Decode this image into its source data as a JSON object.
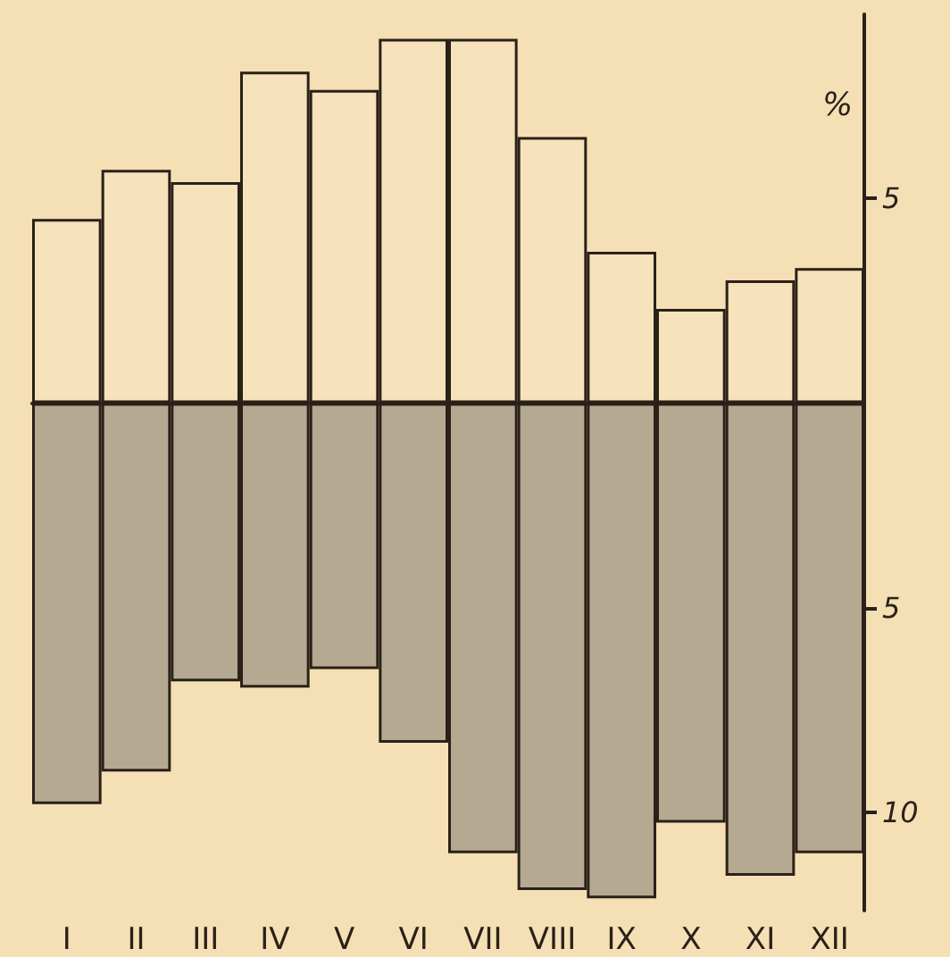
{
  "chart_data": {
    "type": "bar",
    "stacked": true,
    "ylabel": "%",
    "categories": [
      "I",
      "II",
      "III",
      "IV",
      "V",
      "VI",
      "VII",
      "VIII",
      "IX",
      "X",
      "XI",
      "XII"
    ],
    "series": [
      {
        "color": "#f6e2bb",
        "values": [
          4.5,
          5.7,
          5.4,
          8.1,
          7.65,
          8.9,
          8.9,
          6.5,
          3.7,
          2.3,
          3.0,
          3.3
        ]
      },
      {
        "color": "#b5a992",
        "values": [
          -9.8,
          -9.0,
          -6.8,
          -6.95,
          -6.5,
          -8.3,
          -11.0,
          -11.9,
          -12.1,
          -10.25,
          -11.55,
          -11.0
        ]
      }
    ],
    "ylim": [
      -12.4,
      9.5
    ],
    "yticks": [
      {
        "value": 5,
        "label": "5"
      },
      {
        "value": -5,
        "label": "5"
      },
      {
        "value": -10,
        "label": "10"
      }
    ],
    "grid": false
  }
}
